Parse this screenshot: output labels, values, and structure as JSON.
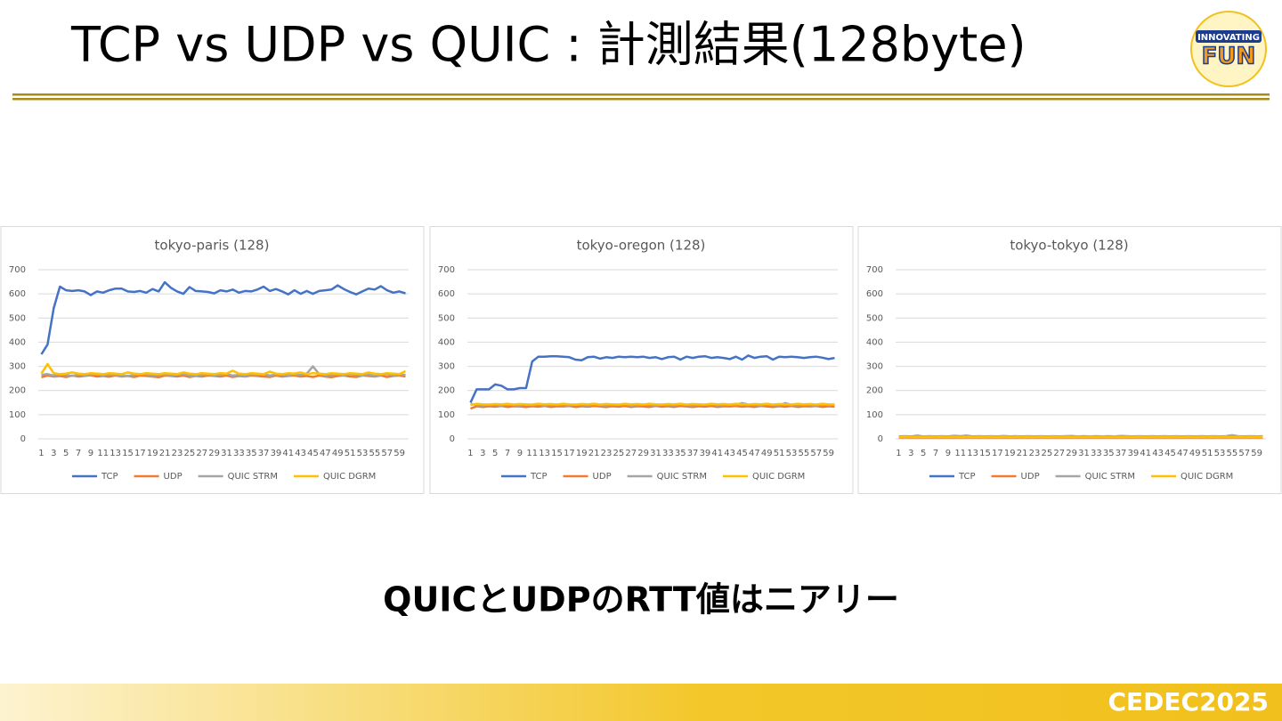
{
  "title": "TCP vs UDP vs QUIC : 計測結果(128byte)",
  "logo": [
    "INNOVATING",
    "FUN"
  ],
  "caption": "QUICとUDPのRTT値はニアリー",
  "footer": "CEDEC2025",
  "chart_data": [
    {
      "type": "line",
      "title": "tokyo-paris (128)",
      "categories": [
        "1",
        null,
        "3",
        null,
        "5",
        null,
        "7",
        null,
        "9",
        null,
        "11",
        null,
        "13",
        null,
        "15",
        null,
        "17",
        null,
        "19",
        null,
        "21",
        null,
        "23",
        null,
        "25",
        null,
        "27",
        null,
        "29",
        null,
        "31",
        null,
        "33",
        null,
        "35",
        null,
        "37",
        null,
        "39",
        null,
        "41",
        null,
        "43",
        null,
        "45",
        null,
        "47",
        null,
        "49",
        null,
        "51",
        null,
        "53",
        null,
        "55",
        null,
        "57",
        null,
        "59",
        null
      ],
      "ylim": [
        0,
        700
      ],
      "yticks": [
        0,
        100,
        200,
        300,
        400,
        500,
        600,
        700
      ],
      "grid": true,
      "legend": "bottom",
      "series": [
        {
          "name": "TCP",
          "color": "#4472c4",
          "values": [
            350,
            390,
            540,
            630,
            615,
            612,
            615,
            610,
            595,
            610,
            605,
            615,
            622,
            622,
            610,
            608,
            612,
            605,
            620,
            610,
            648,
            625,
            610,
            600,
            628,
            612,
            610,
            608,
            602,
            615,
            610,
            618,
            605,
            612,
            610,
            618,
            630,
            612,
            620,
            610,
            598,
            615,
            600,
            612,
            600,
            612,
            615,
            618,
            635,
            620,
            608,
            598,
            610,
            622,
            618,
            632,
            615,
            605,
            610,
            602
          ]
        },
        {
          "name": "UDP",
          "color": "#ed7d31",
          "values": [
            255,
            262,
            258,
            260,
            256,
            262,
            258,
            260,
            263,
            258,
            260,
            257,
            262,
            258,
            260,
            256,
            262,
            260,
            258,
            255,
            262,
            260,
            258,
            262,
            256,
            260,
            258,
            262,
            260,
            258,
            262,
            256,
            260,
            258,
            262,
            260,
            258,
            256,
            262,
            258,
            260,
            262,
            258,
            260,
            256,
            262,
            258,
            255,
            260,
            262,
            258,
            256,
            262,
            260,
            258,
            262,
            256,
            260,
            262,
            258
          ]
        },
        {
          "name": "QUIC STRM",
          "color": "#a5a5a5",
          "values": [
            265,
            268,
            262,
            266,
            264,
            260,
            266,
            262,
            264,
            268,
            262,
            266,
            264,
            262,
            260,
            264,
            268,
            266,
            262,
            264,
            266,
            262,
            264,
            268,
            262,
            260,
            264,
            266,
            262,
            264,
            268,
            262,
            264,
            260,
            266,
            264,
            268,
            262,
            266,
            264,
            262,
            266,
            264,
            270,
            300,
            268,
            262,
            264,
            266,
            262,
            268,
            264,
            262,
            266,
            260,
            264,
            268,
            262,
            266,
            264
          ]
        },
        {
          "name": "QUIC DGRM",
          "color": "#ffc000",
          "values": [
            270,
            310,
            272,
            268,
            270,
            275,
            270,
            268,
            272,
            270,
            268,
            272,
            270,
            268,
            275,
            270,
            268,
            272,
            270,
            268,
            272,
            270,
            268,
            275,
            270,
            268,
            272,
            270,
            268,
            272,
            270,
            282,
            270,
            268,
            272,
            270,
            268,
            278,
            270,
            268,
            272,
            270,
            275,
            268,
            272,
            270,
            268,
            272,
            270,
            268,
            272,
            270,
            268,
            275,
            270,
            268,
            272,
            270,
            268,
            280
          ]
        }
      ]
    },
    {
      "type": "line",
      "title": "tokyo-oregon (128)",
      "categories": [
        "1",
        null,
        "3",
        null,
        "5",
        null,
        "7",
        null,
        "9",
        null,
        "11",
        null,
        "13",
        null,
        "15",
        null,
        "17",
        null,
        "19",
        null,
        "21",
        null,
        "23",
        null,
        "25",
        null,
        "27",
        null,
        "29",
        null,
        "31",
        null,
        "33",
        null,
        "35",
        null,
        "37",
        null,
        "39",
        null,
        "41",
        null,
        "43",
        null,
        "45",
        null,
        "47",
        null,
        "49",
        null,
        "51",
        null,
        "53",
        null,
        "55",
        null,
        "57",
        null,
        "59",
        null
      ],
      "ylim": [
        0,
        700
      ],
      "yticks": [
        0,
        100,
        200,
        300,
        400,
        500,
        600,
        700
      ],
      "grid": true,
      "legend": "bottom",
      "series": [
        {
          "name": "TCP",
          "color": "#4472c4",
          "values": [
            150,
            205,
            205,
            205,
            225,
            220,
            205,
            205,
            210,
            210,
            320,
            340,
            340,
            342,
            342,
            340,
            338,
            328,
            325,
            338,
            340,
            332,
            338,
            335,
            340,
            338,
            340,
            338,
            340,
            335,
            338,
            330,
            338,
            340,
            328,
            340,
            335,
            340,
            342,
            335,
            338,
            335,
            330,
            340,
            328,
            345,
            335,
            340,
            342,
            328,
            340,
            338,
            340,
            338,
            335,
            338,
            340,
            336,
            330,
            335
          ]
        },
        {
          "name": "UDP",
          "color": "#ed7d31",
          "values": [
            125,
            135,
            132,
            135,
            133,
            136,
            132,
            135,
            134,
            132,
            135,
            133,
            136,
            132,
            135,
            134,
            136,
            132,
            135,
            133,
            136,
            134,
            132,
            135,
            133,
            136,
            132,
            135,
            134,
            132,
            136,
            133,
            135,
            132,
            136,
            134,
            132,
            135,
            133,
            136,
            132,
            135,
            134,
            136,
            133,
            135,
            132,
            136,
            134,
            132,
            135,
            133,
            136,
            132,
            135,
            134,
            136,
            132,
            135,
            133
          ]
        },
        {
          "name": "QUIC STRM",
          "color": "#a5a5a5",
          "values": [
            145,
            140,
            138,
            142,
            140,
            138,
            142,
            140,
            138,
            142,
            140,
            142,
            138,
            140,
            142,
            140,
            138,
            142,
            140,
            138,
            142,
            140,
            138,
            142,
            140,
            142,
            138,
            140,
            142,
            140,
            138,
            142,
            140,
            138,
            142,
            140,
            138,
            142,
            140,
            142,
            138,
            140,
            142,
            140,
            148,
            142,
            140,
            138,
            142,
            140,
            138,
            148,
            140,
            138,
            142,
            140,
            138,
            142,
            140,
            142
          ]
        },
        {
          "name": "QUIC DGRM",
          "color": "#ffc000",
          "values": [
            140,
            145,
            143,
            142,
            144,
            143,
            145,
            142,
            144,
            143,
            142,
            145,
            143,
            144,
            142,
            145,
            143,
            142,
            144,
            143,
            145,
            142,
            144,
            143,
            142,
            145,
            143,
            144,
            142,
            145,
            143,
            142,
            144,
            143,
            145,
            142,
            144,
            143,
            142,
            145,
            143,
            144,
            142,
            145,
            143,
            142,
            144,
            143,
            145,
            142,
            144,
            143,
            142,
            145,
            143,
            144,
            142,
            145,
            143,
            142
          ]
        }
      ]
    },
    {
      "type": "line",
      "title": "tokyo-tokyo (128)",
      "categories": [
        "1",
        null,
        "3",
        null,
        "5",
        null,
        "7",
        null,
        "9",
        null,
        "11",
        null,
        "13",
        null,
        "15",
        null,
        "17",
        null,
        "19",
        null,
        "21",
        null,
        "23",
        null,
        "25",
        null,
        "27",
        null,
        "29",
        null,
        "31",
        null,
        "33",
        null,
        "35",
        null,
        "37",
        null,
        "39",
        null,
        "41",
        null,
        "43",
        null,
        "45",
        null,
        "47",
        null,
        "49",
        null,
        "51",
        null,
        "53",
        null,
        "55",
        null,
        "57",
        null,
        "59",
        null
      ],
      "ylim": [
        0,
        700
      ],
      "yticks": [
        0,
        100,
        200,
        300,
        400,
        500,
        600,
        700
      ],
      "grid": true,
      "legend": "bottom",
      "series": [
        {
          "name": "TCP",
          "color": "#4472c4",
          "values": [
            8,
            9,
            8,
            10,
            9,
            8,
            9,
            8,
            9,
            10,
            9,
            8,
            10,
            9,
            8,
            9,
            8,
            9,
            8,
            9,
            8,
            9,
            8,
            9,
            8,
            9,
            8,
            9,
            10,
            9,
            8,
            9,
            8,
            9,
            8,
            9,
            10,
            8,
            9,
            8,
            9,
            8,
            9,
            8,
            9,
            8,
            9,
            8,
            9,
            8,
            9,
            8,
            9,
            8,
            10,
            9,
            8,
            9,
            8,
            9
          ]
        },
        {
          "name": "UDP",
          "color": "#ed7d31",
          "values": [
            5,
            6,
            5,
            6,
            5,
            6,
            5,
            6,
            5,
            6,
            5,
            6,
            5,
            6,
            5,
            6,
            5,
            6,
            5,
            6,
            5,
            6,
            5,
            6,
            5,
            6,
            5,
            6,
            5,
            6,
            5,
            6,
            5,
            6,
            5,
            6,
            5,
            6,
            5,
            6,
            5,
            6,
            5,
            6,
            5,
            6,
            5,
            6,
            5,
            6,
            5,
            6,
            5,
            6,
            5,
            6,
            5,
            6,
            5,
            6
          ]
        },
        {
          "name": "QUIC STRM",
          "color": "#a5a5a5",
          "values": [
            10,
            11,
            10,
            14,
            10,
            11,
            10,
            11,
            10,
            13,
            11,
            14,
            10,
            11,
            10,
            11,
            10,
            12,
            10,
            11,
            10,
            11,
            10,
            11,
            10,
            11,
            10,
            11,
            12,
            10,
            11,
            10,
            11,
            10,
            11,
            10,
            12,
            11,
            10,
            11,
            10,
            11,
            10,
            11,
            10,
            11,
            10,
            11,
            10,
            11,
            10,
            11,
            10,
            11,
            15,
            11,
            10,
            11,
            10,
            11
          ]
        },
        {
          "name": "QUIC DGRM",
          "color": "#ffc000",
          "values": [
            7,
            8,
            7,
            8,
            7,
            8,
            7,
            8,
            7,
            8,
            7,
            8,
            7,
            8,
            7,
            8,
            7,
            8,
            7,
            8,
            7,
            8,
            7,
            8,
            7,
            8,
            7,
            8,
            7,
            8,
            7,
            8,
            7,
            8,
            7,
            8,
            7,
            8,
            7,
            8,
            7,
            8,
            7,
            8,
            7,
            8,
            7,
            8,
            7,
            8,
            7,
            8,
            7,
            8,
            7,
            8,
            7,
            8,
            7,
            8
          ]
        }
      ]
    }
  ]
}
